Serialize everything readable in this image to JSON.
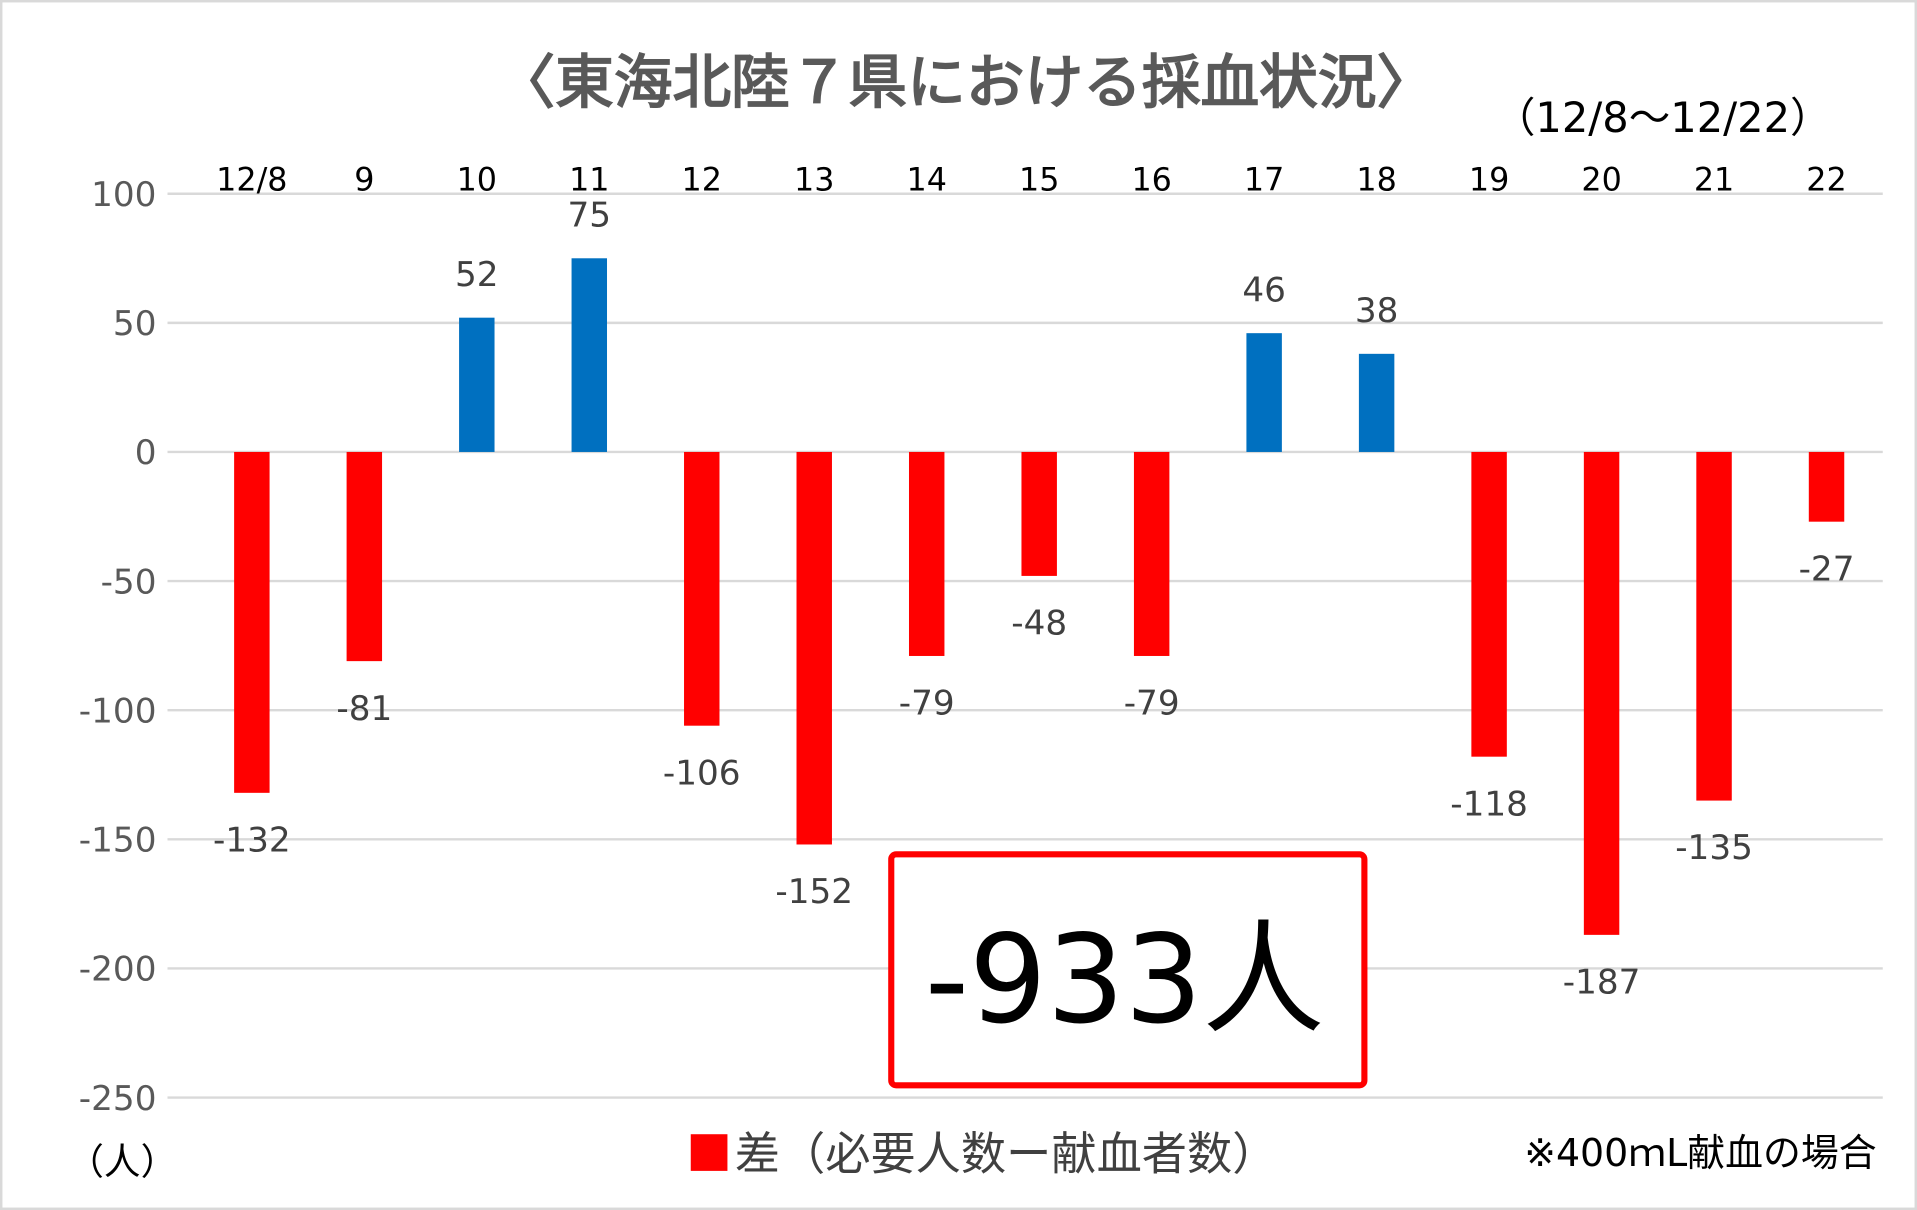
{
  "chart_data": {
    "type": "bar",
    "title": "〈東海北陸７県における採血状況〉",
    "subtitle": "（12/8～12/22）",
    "categories": [
      "12/8",
      "9",
      "10",
      "11",
      "12",
      "13",
      "14",
      "15",
      "16",
      "17",
      "18",
      "19",
      "20",
      "21",
      "22"
    ],
    "series": [
      {
        "name": "差（必要人数ー献血者数）",
        "values": [
          -132,
          -81,
          52,
          75,
          -106,
          -152,
          -79,
          -48,
          -79,
          46,
          38,
          -118,
          -187,
          -135,
          -27
        ]
      }
    ],
    "xlabel": "",
    "ylabel": "（人）",
    "ylim": [
      -250,
      100
    ],
    "yticks": [
      100,
      50,
      0,
      -50,
      -100,
      -150,
      -200,
      -250
    ],
    "grid": true,
    "xaxis_position": "top",
    "legend": "bottom",
    "colors": {
      "positive": "#0070C0",
      "negative": "#FF0000",
      "annotation_border": "#FF0000",
      "gridline": "#D9D9D9"
    },
    "annotations": [
      {
        "text": "-933人"
      },
      {
        "text": "※400ｍL献血の場合"
      }
    ]
  }
}
